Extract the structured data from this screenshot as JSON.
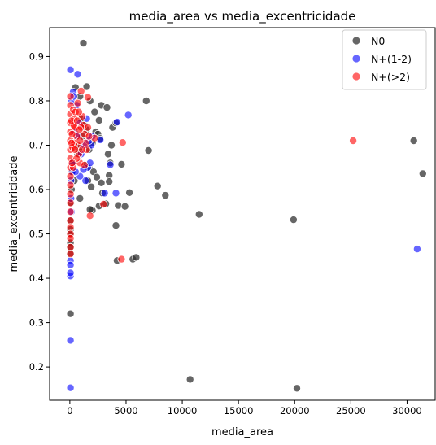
{
  "chart_data": {
    "type": "scatter",
    "title": "media_area vs media_excentricidade",
    "xlabel": "media_area",
    "ylabel": "media_excentricidade",
    "xlim": [
      -1800,
      32500
    ],
    "ylim": [
      0.125,
      0.965
    ],
    "xticks": [
      0,
      5000,
      10000,
      15000,
      20000,
      25000,
      30000
    ],
    "yticks": [
      0.2,
      0.3,
      0.4,
      0.5,
      0.6,
      0.7,
      0.8,
      0.9
    ],
    "grid": false,
    "legend_position": "top-right",
    "series": [
      {
        "name": "N0",
        "color": "#333333",
        "points": [
          [
            1200,
            0.93
          ],
          [
            6800,
            0.8
          ],
          [
            2800,
            0.79
          ],
          [
            3300,
            0.785
          ],
          [
            500,
            0.83
          ],
          [
            1500,
            0.832
          ],
          [
            900,
            0.81
          ],
          [
            1800,
            0.8
          ],
          [
            2200,
            0.775
          ],
          [
            2600,
            0.756
          ],
          [
            3800,
            0.74
          ],
          [
            4100,
            0.75
          ],
          [
            2300,
            0.73
          ],
          [
            2500,
            0.725
          ],
          [
            2700,
            0.715
          ],
          [
            3700,
            0.7
          ],
          [
            7000,
            0.688
          ],
          [
            3400,
            0.68
          ],
          [
            3600,
            0.66
          ],
          [
            4600,
            0.657
          ],
          [
            1700,
            0.65
          ],
          [
            2100,
            0.64
          ],
          [
            2400,
            0.628
          ],
          [
            3500,
            0.632
          ],
          [
            3500,
            0.618
          ],
          [
            2800,
            0.615
          ],
          [
            7800,
            0.608
          ],
          [
            8500,
            0.587
          ],
          [
            1600,
            0.62
          ],
          [
            1900,
            0.606
          ],
          [
            900,
            0.58
          ],
          [
            2900,
            0.592
          ],
          [
            5300,
            0.593
          ],
          [
            2000,
            0.553
          ],
          [
            1800,
            0.555
          ],
          [
            2600,
            0.563
          ],
          [
            4300,
            0.564
          ],
          [
            4900,
            0.562
          ],
          [
            3200,
            0.568
          ],
          [
            11500,
            0.544
          ],
          [
            19900,
            0.532
          ],
          [
            4100,
            0.519
          ],
          [
            30600,
            0.71
          ],
          [
            31400,
            0.636
          ],
          [
            4200,
            0.44
          ],
          [
            5600,
            0.443
          ],
          [
            5900,
            0.447
          ],
          [
            10700,
            0.172
          ],
          [
            20200,
            0.152
          ],
          [
            50,
            0.32
          ],
          [
            50,
            0.5
          ],
          [
            50,
            0.51
          ],
          [
            50,
            0.53
          ],
          [
            50,
            0.48
          ],
          [
            50,
            0.455
          ],
          [
            50,
            0.47
          ],
          [
            100,
            0.57
          ],
          [
            150,
            0.6
          ],
          [
            200,
            0.64
          ],
          [
            300,
            0.66
          ],
          [
            600,
            0.7
          ],
          [
            800,
            0.69
          ],
          [
            1100,
            0.72
          ],
          [
            1300,
            0.745
          ],
          [
            1500,
            0.735
          ],
          [
            1000,
            0.76
          ],
          [
            700,
            0.68
          ],
          [
            400,
            0.62
          ],
          [
            1400,
            0.655
          ],
          [
            1700,
            0.69
          ],
          [
            2000,
            0.705
          ]
        ]
      },
      {
        "name": "N+(1-2)",
        "color": "#0000ff",
        "points": [
          [
            50,
            0.87
          ],
          [
            700,
            0.86
          ],
          [
            300,
            0.82
          ],
          [
            5200,
            0.768
          ],
          [
            4200,
            0.752
          ],
          [
            3600,
            0.656
          ],
          [
            2700,
            0.712
          ],
          [
            4100,
            0.592
          ],
          [
            3100,
            0.592
          ],
          [
            30900,
            0.466
          ],
          [
            50,
            0.44
          ],
          [
            50,
            0.43
          ],
          [
            50,
            0.405
          ],
          [
            50,
            0.412
          ],
          [
            50,
            0.26
          ],
          [
            50,
            0.153
          ],
          [
            100,
            0.62
          ],
          [
            200,
            0.64
          ],
          [
            250,
            0.66
          ],
          [
            400,
            0.73
          ],
          [
            600,
            0.79
          ],
          [
            800,
            0.75
          ],
          [
            1000,
            0.68
          ],
          [
            1300,
            0.7
          ],
          [
            1500,
            0.76
          ],
          [
            1600,
            0.65
          ],
          [
            1800,
            0.66
          ],
          [
            1900,
            0.7
          ],
          [
            1400,
            0.62
          ],
          [
            900,
            0.63
          ],
          [
            500,
            0.64
          ],
          [
            150,
            0.8
          ],
          [
            350,
            0.81
          ],
          [
            1200,
            0.645
          ],
          [
            700,
            0.72
          ],
          [
            1700,
            0.71
          ],
          [
            2000,
            0.72
          ],
          [
            150,
            0.55
          ],
          [
            100,
            0.58
          ]
        ]
      },
      {
        "name": "N+(>2)",
        "color": "#ff0000",
        "points": [
          [
            25200,
            0.71
          ],
          [
            4700,
            0.706
          ],
          [
            4600,
            0.443
          ],
          [
            1800,
            0.541
          ],
          [
            3000,
            0.567
          ],
          [
            2200,
            0.716
          ],
          [
            1600,
            0.808
          ],
          [
            1000,
            0.822
          ],
          [
            50,
            0.81
          ],
          [
            50,
            0.79
          ],
          [
            50,
            0.77
          ],
          [
            50,
            0.75
          ],
          [
            50,
            0.73
          ],
          [
            50,
            0.71
          ],
          [
            50,
            0.69
          ],
          [
            50,
            0.67
          ],
          [
            50,
            0.65
          ],
          [
            50,
            0.63
          ],
          [
            50,
            0.61
          ],
          [
            50,
            0.59
          ],
          [
            50,
            0.57
          ],
          [
            50,
            0.55
          ],
          [
            50,
            0.53
          ],
          [
            50,
            0.515
          ],
          [
            50,
            0.5
          ],
          [
            50,
            0.49
          ],
          [
            50,
            0.47
          ],
          [
            50,
            0.455
          ],
          [
            300,
            0.78
          ],
          [
            400,
            0.76
          ],
          [
            500,
            0.74
          ],
          [
            600,
            0.72
          ],
          [
            700,
            0.7
          ],
          [
            800,
            0.68
          ],
          [
            900,
            0.66
          ],
          [
            300,
            0.65
          ],
          [
            400,
            0.705
          ],
          [
            500,
            0.775
          ],
          [
            200,
            0.725
          ],
          [
            1100,
            0.765
          ],
          [
            1200,
            0.745
          ],
          [
            1300,
            0.725
          ],
          [
            1400,
            0.705
          ],
          [
            1500,
            0.69
          ],
          [
            700,
            0.795
          ],
          [
            800,
            0.775
          ],
          [
            1000,
            0.74
          ],
          [
            600,
            0.67
          ],
          [
            900,
            0.71
          ],
          [
            250,
            0.695
          ],
          [
            350,
            0.745
          ],
          [
            150,
            0.755
          ],
          [
            1100,
            0.69
          ],
          [
            1300,
            0.655
          ],
          [
            1600,
            0.74
          ],
          [
            200,
            0.66
          ],
          [
            450,
            0.69
          ],
          [
            650,
            0.755
          ],
          [
            850,
            0.735
          ],
          [
            150,
            0.705
          ],
          [
            1700,
            0.72
          ]
        ]
      }
    ]
  }
}
